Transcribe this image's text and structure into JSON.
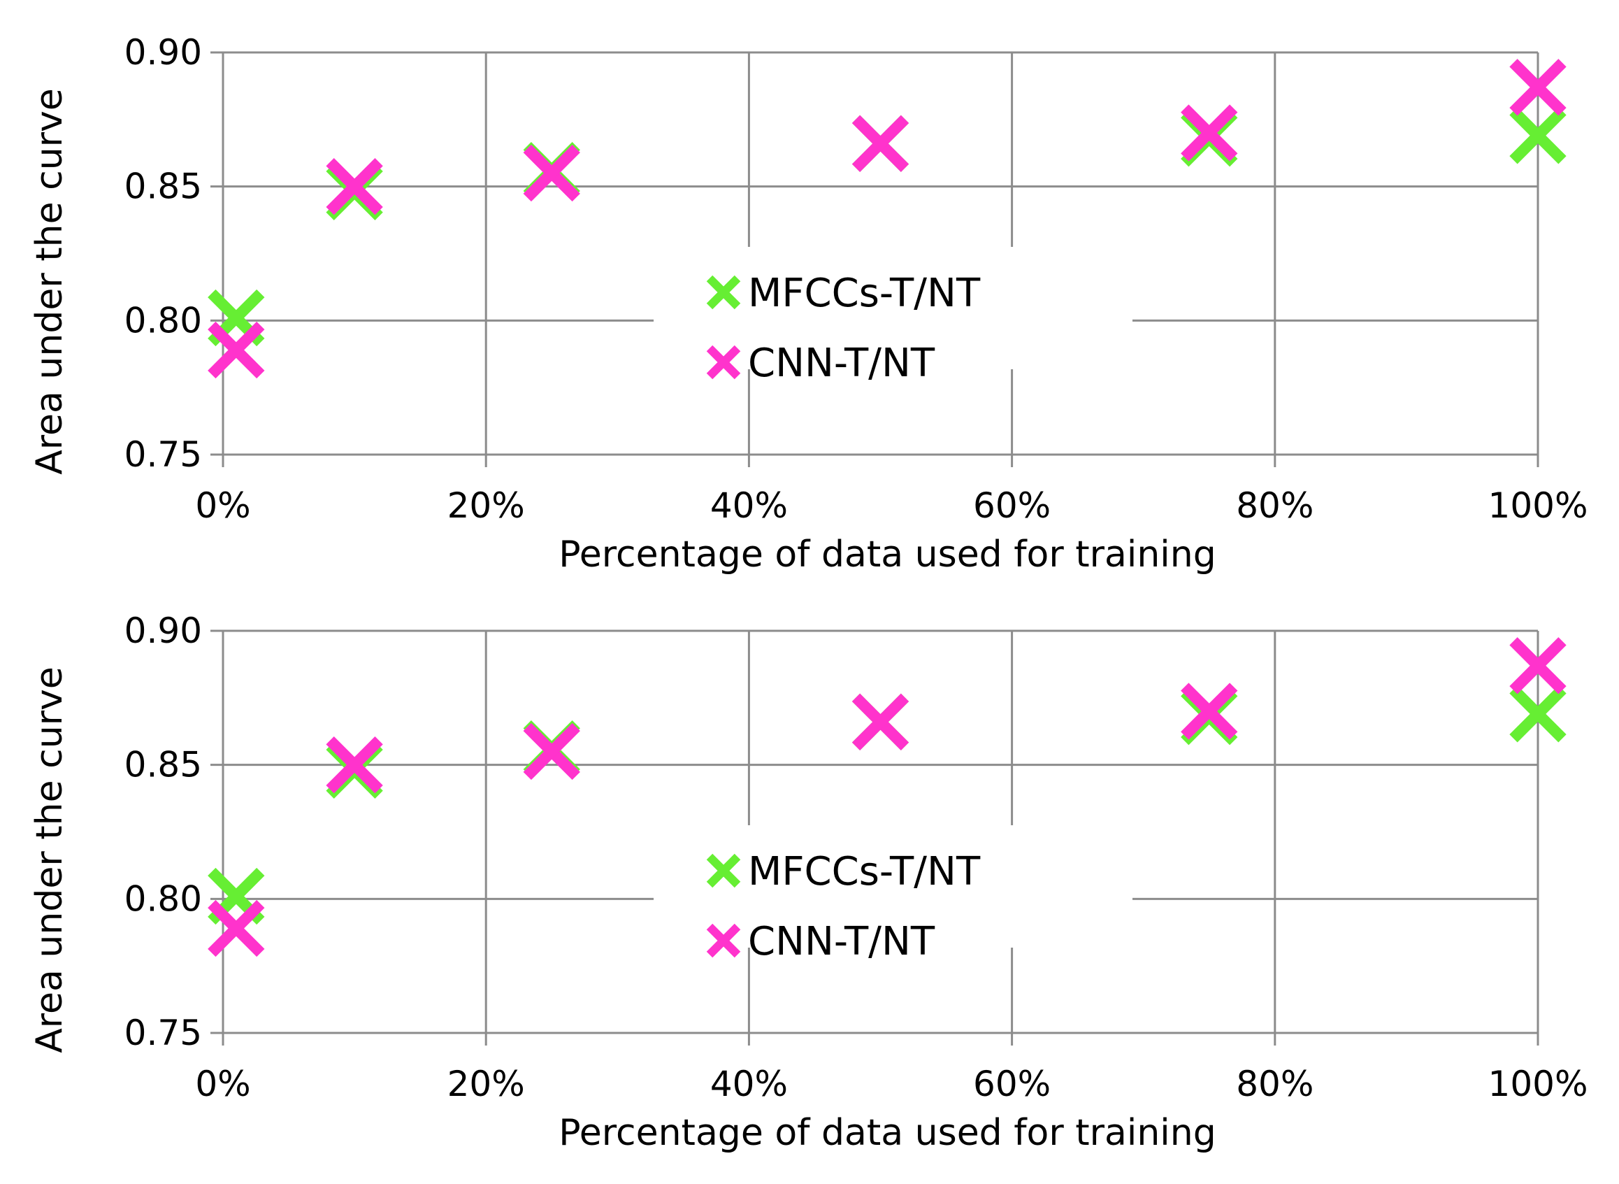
{
  "chart_data": [
    {
      "type": "scatter",
      "xlabel": "Percentage of data used for training",
      "ylabel": "Area under the curve",
      "xlim": [
        0,
        100
      ],
      "ylim": [
        0.75,
        0.9
      ],
      "xticks": [
        0,
        20,
        40,
        60,
        80,
        100
      ],
      "xtick_labels": [
        "0%",
        "20%",
        "40%",
        "60%",
        "80%",
        "100%"
      ],
      "yticks": [
        0.75,
        0.8,
        0.85,
        0.9
      ],
      "ytick_labels": [
        "0.75",
        "0.80",
        "0.85",
        "0.90"
      ],
      "grid": true,
      "legend_position": "center",
      "series": [
        {
          "name": "MFCCs-T/NT",
          "color": "#66ee33",
          "marker": "x",
          "x": [
            1,
            10,
            25,
            50,
            75,
            100
          ],
          "y": [
            0.801,
            0.848,
            0.856,
            0.866,
            0.868,
            0.869
          ]
        },
        {
          "name": "CNN-T/NT",
          "color": "#ff33cc",
          "marker": "x",
          "x": [
            1,
            10,
            25,
            50,
            75,
            100
          ],
          "y": [
            0.789,
            0.85,
            0.855,
            0.866,
            0.87,
            0.887
          ]
        }
      ]
    },
    {
      "type": "scatter",
      "xlabel": "Percentage of data used for training",
      "ylabel": "Area under the curve",
      "xlim": [
        0,
        100
      ],
      "ylim": [
        0.75,
        0.9
      ],
      "xticks": [
        0,
        20,
        40,
        60,
        80,
        100
      ],
      "xtick_labels": [
        "0%",
        "20%",
        "40%",
        "60%",
        "80%",
        "100%"
      ],
      "yticks": [
        0.75,
        0.8,
        0.85,
        0.9
      ],
      "ytick_labels": [
        "0.75",
        "0.80",
        "0.85",
        "0.90"
      ],
      "grid": true,
      "legend_position": "center",
      "series": [
        {
          "name": "MFCCs-T/NT",
          "color": "#66ee33",
          "marker": "x",
          "x": [
            1,
            10,
            25,
            50,
            75,
            100
          ],
          "y": [
            0.801,
            0.848,
            0.856,
            0.866,
            0.868,
            0.869
          ]
        },
        {
          "name": "CNN-T/NT",
          "color": "#ff33cc",
          "marker": "x",
          "x": [
            1,
            10,
            25,
            50,
            75,
            100
          ],
          "y": [
            0.789,
            0.85,
            0.855,
            0.866,
            0.87,
            0.887
          ]
        }
      ]
    }
  ]
}
